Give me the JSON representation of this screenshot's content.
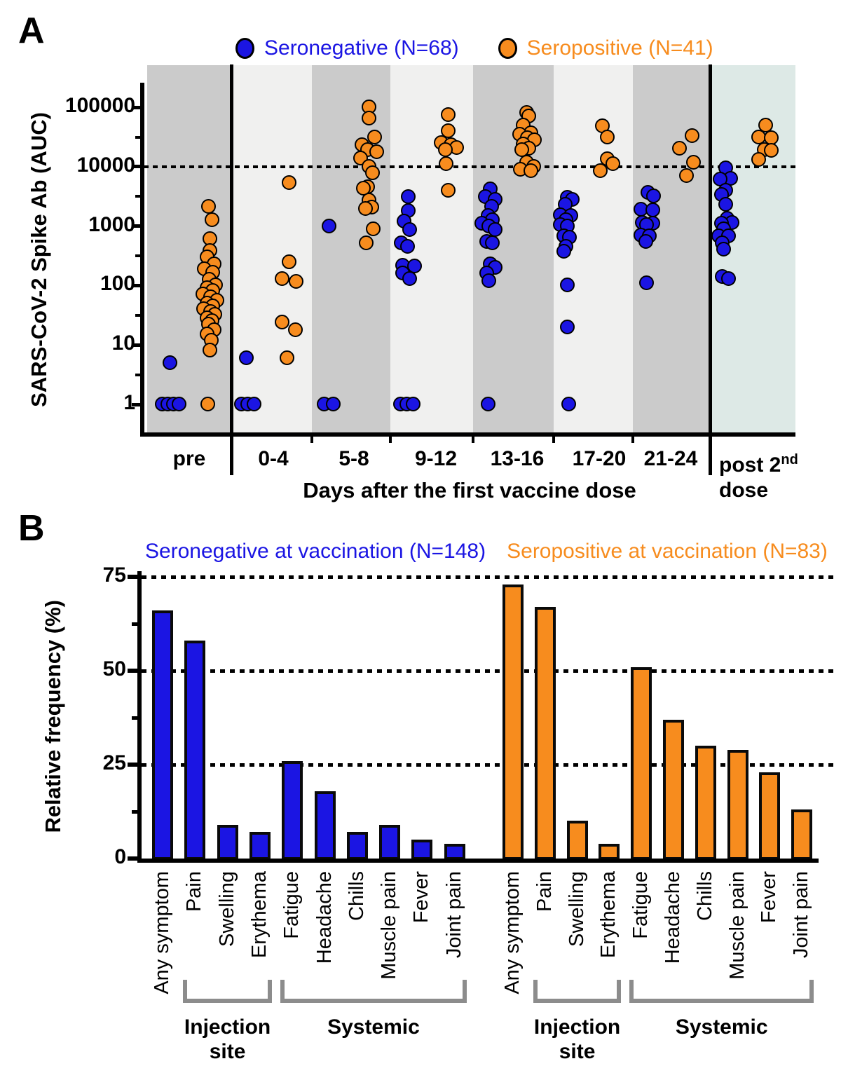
{
  "colors": {
    "seronegative": "#1b15e3",
    "seropositive": "#f78c1e",
    "band_dark": "#cbcbcb",
    "band_light": "#f0f0ef",
    "band_post": "#dde9e6",
    "bracket": "#8c8c8c",
    "axis": "#000000"
  },
  "panel_a": {
    "label": "A",
    "legend": [
      {
        "label": "Seronegative (N=68)",
        "color": "#1b15e3"
      },
      {
        "label": "Seropositive (N=41)",
        "color": "#f78c1e"
      }
    ],
    "ylabel": "SARS-CoV-2 Spike Ab (AUC)",
    "xlabel": "Days after the first vaccine dose",
    "post_label": {
      "base": "post 2",
      "sup": "nd",
      "line2": "dose"
    }
  },
  "panel_b": {
    "label": "B",
    "legend": [
      {
        "label": "Seronegative at vaccination (N=148)",
        "color": "#1b15e3"
      },
      {
        "label": "Seropositive at vaccination (N=83)",
        "color": "#f78c1e"
      }
    ],
    "ylabel": "Relative frequency (%)"
  },
  "chart_data": [
    {
      "type": "scatter",
      "panel": "A",
      "yscale": "log",
      "ylabel": "SARS-CoV-2 Spike Ab (AUC)",
      "xlabel": "Days after the first vaccine dose",
      "ylim": [
        1,
        200000
      ],
      "yticks": [
        1,
        10,
        100,
        1000,
        10000,
        100000
      ],
      "reference_line": 10000,
      "legend": [
        "Seronegative (N=68)",
        "Seropositive (N=41)"
      ],
      "timepoints": [
        {
          "label": "pre",
          "seronegative": [
            [
              1,
              -38
            ],
            [
              1,
              -30
            ],
            [
              1,
              -22
            ],
            [
              1,
              -14
            ],
            [
              5,
              -27
            ]
          ],
          "seropositive": [
            [
              2100,
              28
            ],
            [
              1250,
              33
            ],
            [
              600,
              30
            ],
            [
              380,
              30
            ],
            [
              300,
              26
            ],
            [
              230,
              36
            ],
            [
              190,
              22
            ],
            [
              165,
              34
            ],
            [
              125,
              29
            ],
            [
              100,
              38
            ],
            [
              92,
              26
            ],
            [
              82,
              34
            ],
            [
              72,
              20
            ],
            [
              64,
              31
            ],
            [
              56,
              40
            ],
            [
              50,
              26
            ],
            [
              45,
              34
            ],
            [
              40,
              21
            ],
            [
              36,
              31
            ],
            [
              32,
              37
            ],
            [
              28,
              26
            ],
            [
              25,
              33
            ],
            [
              22,
              28
            ],
            [
              18,
              36
            ],
            [
              15,
              26
            ],
            [
              12,
              32
            ],
            [
              8,
              30
            ],
            [
              1,
              27
            ]
          ]
        },
        {
          "label": "0-4",
          "seronegative": [
            [
              6,
              -38
            ],
            [
              1,
              -45
            ],
            [
              1,
              -36
            ],
            [
              1,
              -27
            ]
          ],
          "seropositive": [
            [
              5400,
              23
            ],
            [
              250,
              23
            ],
            [
              130,
              13
            ],
            [
              115,
              33
            ],
            [
              24,
              13
            ],
            [
              18,
              32
            ],
            [
              6,
              20
            ]
          ]
        },
        {
          "label": "5-8",
          "seronegative": [
            [
              1000,
              -35
            ],
            [
              1,
              -42
            ],
            [
              1,
              -29
            ]
          ],
          "seropositive": [
            [
              100000,
              22
            ],
            [
              65000,
              22
            ],
            [
              31000,
              30
            ],
            [
              23000,
              12
            ],
            [
              19000,
              20
            ],
            [
              17500,
              33
            ],
            [
              13800,
              10
            ],
            [
              10000,
              22
            ],
            [
              7800,
              27
            ],
            [
              4600,
              20
            ],
            [
              4300,
              14
            ],
            [
              2700,
              22
            ],
            [
              2050,
              26
            ],
            [
              1950,
              17
            ],
            [
              900,
              28
            ],
            [
              520,
              18
            ]
          ]
        },
        {
          "label": "9-12",
          "seronegative": [
            [
              3100,
              -39
            ],
            [
              1800,
              -39
            ],
            [
              1200,
              -45
            ],
            [
              870,
              -37
            ],
            [
              510,
              -49
            ],
            [
              450,
              -40
            ],
            [
              215,
              -47
            ],
            [
              210,
              -30
            ],
            [
              160,
              -47
            ],
            [
              130,
              -37
            ],
            [
              1,
              -50
            ],
            [
              1,
              -41
            ],
            [
              1,
              -32
            ]
          ],
          "seropositive": [
            [
              74000,
              18
            ],
            [
              40000,
              18
            ],
            [
              25000,
              8
            ],
            [
              23000,
              22
            ],
            [
              21000,
              30
            ],
            [
              19000,
              14
            ],
            [
              11000,
              15
            ],
            [
              4000,
              18
            ]
          ]
        },
        {
          "label": "13-16",
          "seronegative": [
            [
              4200,
              -38
            ],
            [
              3100,
              -45
            ],
            [
              2750,
              -31
            ],
            [
              2150,
              -36
            ],
            [
              1500,
              -41
            ],
            [
              1250,
              -35
            ],
            [
              1100,
              -50
            ],
            [
              1000,
              -40
            ],
            [
              870,
              -31
            ],
            [
              550,
              -43
            ],
            [
              520,
              -35
            ],
            [
              230,
              -38
            ],
            [
              200,
              -31
            ],
            [
              160,
              -43
            ],
            [
              120,
              -40
            ],
            [
              1,
              -41
            ]
          ],
          "seropositive": [
            [
              80000,
              14
            ],
            [
              70000,
              17
            ],
            [
              49000,
              9
            ],
            [
              37000,
              20
            ],
            [
              35000,
              4
            ],
            [
              30000,
              15
            ],
            [
              28000,
              25
            ],
            [
              24000,
              9
            ],
            [
              20000,
              17
            ],
            [
              19000,
              7
            ],
            [
              11700,
              14
            ],
            [
              10000,
              24
            ],
            [
              9000,
              5
            ],
            [
              8500,
              20
            ]
          ]
        },
        {
          "label": "17-20",
          "seronegative": [
            [
              3050,
              -45
            ],
            [
              2750,
              -38
            ],
            [
              2280,
              -48
            ],
            [
              1550,
              -55
            ],
            [
              1500,
              -40
            ],
            [
              1250,
              -47
            ],
            [
              1060,
              -55
            ],
            [
              1000,
              -45
            ],
            [
              670,
              -50
            ],
            [
              640,
              -42
            ],
            [
              450,
              -47
            ],
            [
              370,
              -50
            ],
            [
              100,
              -45
            ],
            [
              20,
              -45
            ],
            [
              1,
              -43
            ]
          ],
          "seropositive": [
            [
              48000,
              5
            ],
            [
              31000,
              12
            ],
            [
              13300,
              12
            ],
            [
              11000,
              20
            ],
            [
              8400,
              2
            ]
          ]
        },
        {
          "label": "21-24",
          "seronegative": [
            [
              3700,
              -32
            ],
            [
              3200,
              -24
            ],
            [
              1900,
              -42
            ],
            [
              1850,
              -25
            ],
            [
              1150,
              -40
            ],
            [
              1100,
              -25
            ],
            [
              1050,
              -34
            ],
            [
              690,
              -42
            ],
            [
              680,
              -30
            ],
            [
              550,
              -35
            ],
            [
              110,
              -34
            ]
          ],
          "seropositive": [
            [
              33000,
              31
            ],
            [
              20000,
              13
            ],
            [
              11700,
              33
            ],
            [
              7000,
              23
            ]
          ]
        },
        {
          "label": "post 2nd dose",
          "seronegative": [
            [
              9500,
              -37
            ],
            [
              6300,
              -30
            ],
            [
              6050,
              -45
            ],
            [
              4000,
              -37
            ],
            [
              3350,
              -43
            ],
            [
              2300,
              -37
            ],
            [
              1350,
              -35
            ],
            [
              1150,
              -28
            ],
            [
              1100,
              -43
            ],
            [
              900,
              -40
            ],
            [
              680,
              -47
            ],
            [
              680,
              -33
            ],
            [
              510,
              -42
            ],
            [
              400,
              -40
            ],
            [
              140,
              -42
            ],
            [
              130,
              -33
            ]
          ],
          "seropositive": [
            [
              49000,
              20
            ],
            [
              31000,
              10
            ],
            [
              30000,
              28
            ],
            [
              19000,
              18
            ],
            [
              18500,
              28
            ],
            [
              13000,
              10
            ]
          ]
        }
      ]
    },
    {
      "type": "bar",
      "panel": "B",
      "ylabel": "Relative frequency (%)",
      "ylim": [
        0,
        75
      ],
      "yticks": [
        0,
        25,
        50,
        75
      ],
      "gridlines": [
        25,
        50,
        75
      ],
      "categories": [
        "Any symptom",
        "Pain",
        "Swelling",
        "Erythema",
        "Fatigue",
        "Headache",
        "Chills",
        "Muscle pain",
        "Fever",
        "Joint pain"
      ],
      "series": [
        {
          "name": "Seronegative at vaccination (N=148)",
          "color": "#1b15e3",
          "values": [
            66,
            58,
            9,
            7,
            26,
            18,
            7,
            9,
            5,
            4
          ]
        },
        {
          "name": "Seropositive at vaccination (N=83)",
          "color": "#f78c1e",
          "values": [
            73,
            67,
            10,
            4,
            51,
            37,
            30,
            29,
            23,
            13
          ]
        }
      ],
      "group_brackets": [
        {
          "lines": [
            "Injection",
            "site"
          ],
          "from_index": 1,
          "to_index": 3
        },
        {
          "lines": [
            "Systemic"
          ],
          "from_index": 4,
          "to_index": 9
        }
      ]
    }
  ]
}
